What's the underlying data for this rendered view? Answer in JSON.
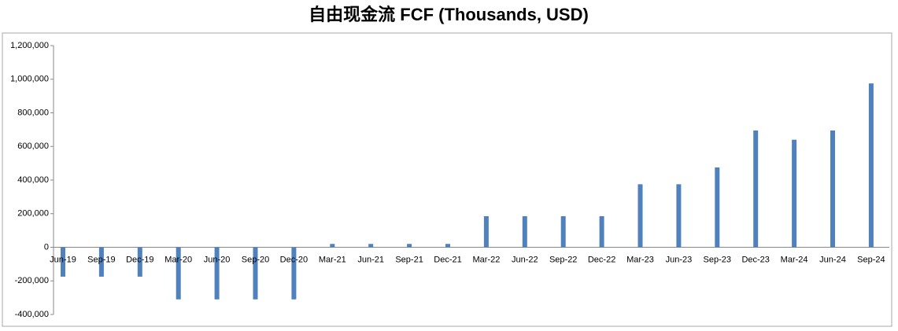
{
  "chart_data": {
    "type": "bar",
    "title": "自由现金流 FCF (Thousands, USD)",
    "categories": [
      "Jun-19",
      "Sep-19",
      "Dec-19",
      "Mar-20",
      "Jun-20",
      "Sep-20",
      "Dec-20",
      "Mar-21",
      "Jun-21",
      "Sep-21",
      "Dec-21",
      "Mar-22",
      "Jun-22",
      "Sep-22",
      "Dec-22",
      "Mar-23",
      "Jun-23",
      "Sep-23",
      "Dec-23",
      "Mar-24",
      "Jun-24",
      "Sep-24"
    ],
    "values": [
      -175000,
      -175000,
      -175000,
      -310000,
      -310000,
      -310000,
      -310000,
      20000,
      20000,
      20000,
      20000,
      185000,
      185000,
      185000,
      185000,
      375000,
      375000,
      475000,
      695000,
      640000,
      695000,
      975000
    ],
    "color": "#4f81bd",
    "ylim": [
      -400000,
      1200000
    ],
    "yticks": [
      {
        "value": -400000,
        "label": "-400,000"
      },
      {
        "value": -200000,
        "label": "-200,000"
      },
      0,
      {
        "value": 200000,
        "label": "200,000"
      },
      {
        "value": 400000,
        "label": "400,000"
      },
      {
        "value": 600000,
        "label": "600,000"
      },
      {
        "value": 800000,
        "label": "800,000"
      },
      {
        "value": 1000000,
        "label": "1,000,000"
      },
      {
        "value": 1200000,
        "label": "1,200,000"
      }
    ],
    "grid": false
  }
}
